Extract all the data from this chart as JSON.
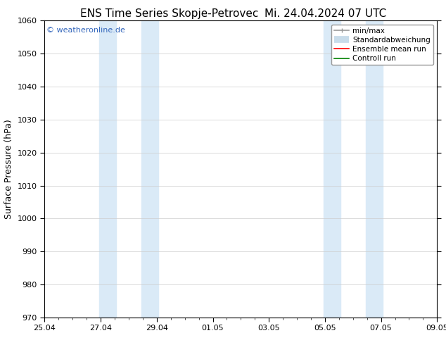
{
  "title_left": "ENS Time Series Skopje-Petrovec",
  "title_right": "Mi. 24.04.2024 07 UTC",
  "ylabel": "Surface Pressure (hPa)",
  "ylim": [
    970,
    1060
  ],
  "yticks": [
    970,
    980,
    990,
    1000,
    1010,
    1020,
    1030,
    1040,
    1050,
    1060
  ],
  "xtick_labels": [
    "25.04",
    "27.04",
    "29.04",
    "01.05",
    "03.05",
    "05.05",
    "07.05",
    "09.05"
  ],
  "xtick_positions": [
    0,
    2,
    4,
    6,
    8,
    10,
    12,
    14
  ],
  "xlim": [
    0,
    14
  ],
  "shaded_bands": [
    {
      "xmin": 1.95,
      "xmax": 2.55,
      "color": "#daeaf7"
    },
    {
      "xmin": 3.45,
      "xmax": 4.05,
      "color": "#daeaf7"
    },
    {
      "xmin": 9.95,
      "xmax": 10.55,
      "color": "#daeaf7"
    },
    {
      "xmin": 11.45,
      "xmax": 12.05,
      "color": "#daeaf7"
    }
  ],
  "watermark_text": "© weatheronline.de",
  "watermark_color": "#3366bb",
  "legend_entries": [
    {
      "label": "min/max",
      "color": "#999999",
      "lw": 1.2,
      "ls": "-"
    },
    {
      "label": "Standardabweichung",
      "color": "#c8dcea",
      "lw": 7,
      "ls": "-"
    },
    {
      "label": "Ensemble mean run",
      "color": "red",
      "lw": 1.2,
      "ls": "-"
    },
    {
      "label": "Controll run",
      "color": "green",
      "lw": 1.2,
      "ls": "-"
    }
  ],
  "bg_color": "#ffffff",
  "grid_color": "#cccccc",
  "title_fontsize": 11,
  "tick_fontsize": 8,
  "ylabel_fontsize": 9,
  "legend_fontsize": 7.5
}
